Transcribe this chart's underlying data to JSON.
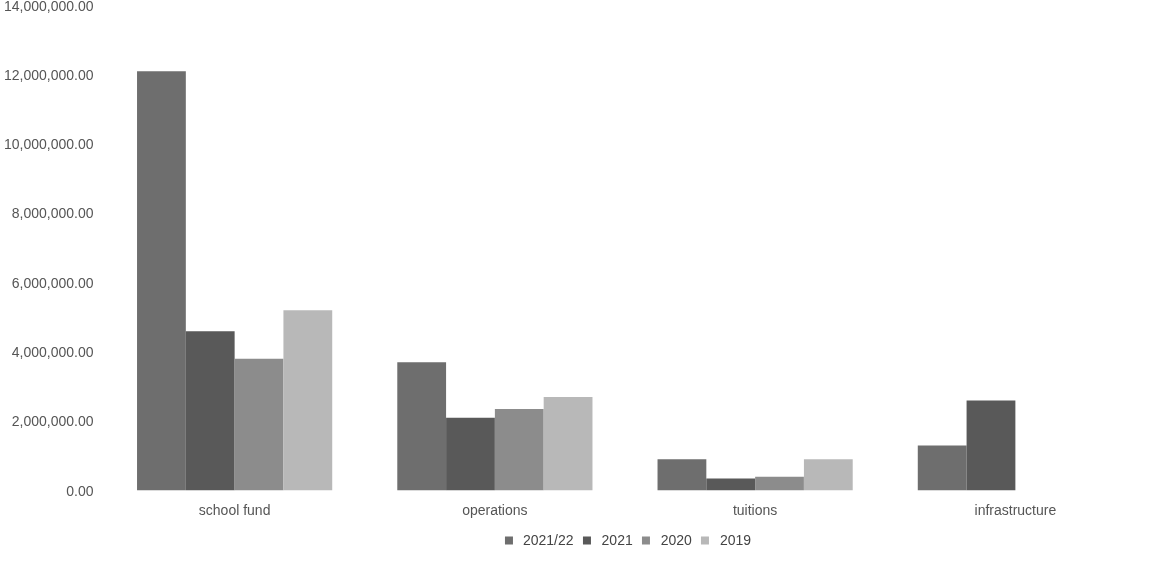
{
  "chart_data": {
    "type": "bar",
    "categories": [
      "school fund",
      "operations",
      "tuitions",
      "infrastructure"
    ],
    "series": [
      {
        "name": "2021/22",
        "color": "#6e6e6e",
        "values": [
          12100000,
          3700000,
          900000,
          1300000
        ]
      },
      {
        "name": "2021",
        "color": "#595959",
        "values": [
          4600000,
          2100000,
          350000,
          2600000
        ]
      },
      {
        "name": "2020",
        "color": "#8c8c8c",
        "values": [
          3800000,
          2350000,
          400000,
          null
        ]
      },
      {
        "name": "2019",
        "color": "#b8b8b8",
        "values": [
          5200000,
          2700000,
          900000,
          null
        ]
      }
    ],
    "ylim": [
      0,
      14000000
    ],
    "yticks": [
      {
        "value": 0,
        "label": "0.00"
      },
      {
        "value": 2000000,
        "label": "2,000,000.00"
      },
      {
        "value": 4000000,
        "label": "4,000,000.00"
      },
      {
        "value": 6000000,
        "label": "6,000,000.00"
      },
      {
        "value": 8000000,
        "label": "8,000,000.00"
      },
      {
        "value": 10000000,
        "label": "10,000,000.00"
      },
      {
        "value": 12000000,
        "label": "12,000,000.00"
      },
      {
        "value": 14000000,
        "label": "14,000,000.00"
      }
    ],
    "grid": false,
    "legend": "bottom"
  }
}
